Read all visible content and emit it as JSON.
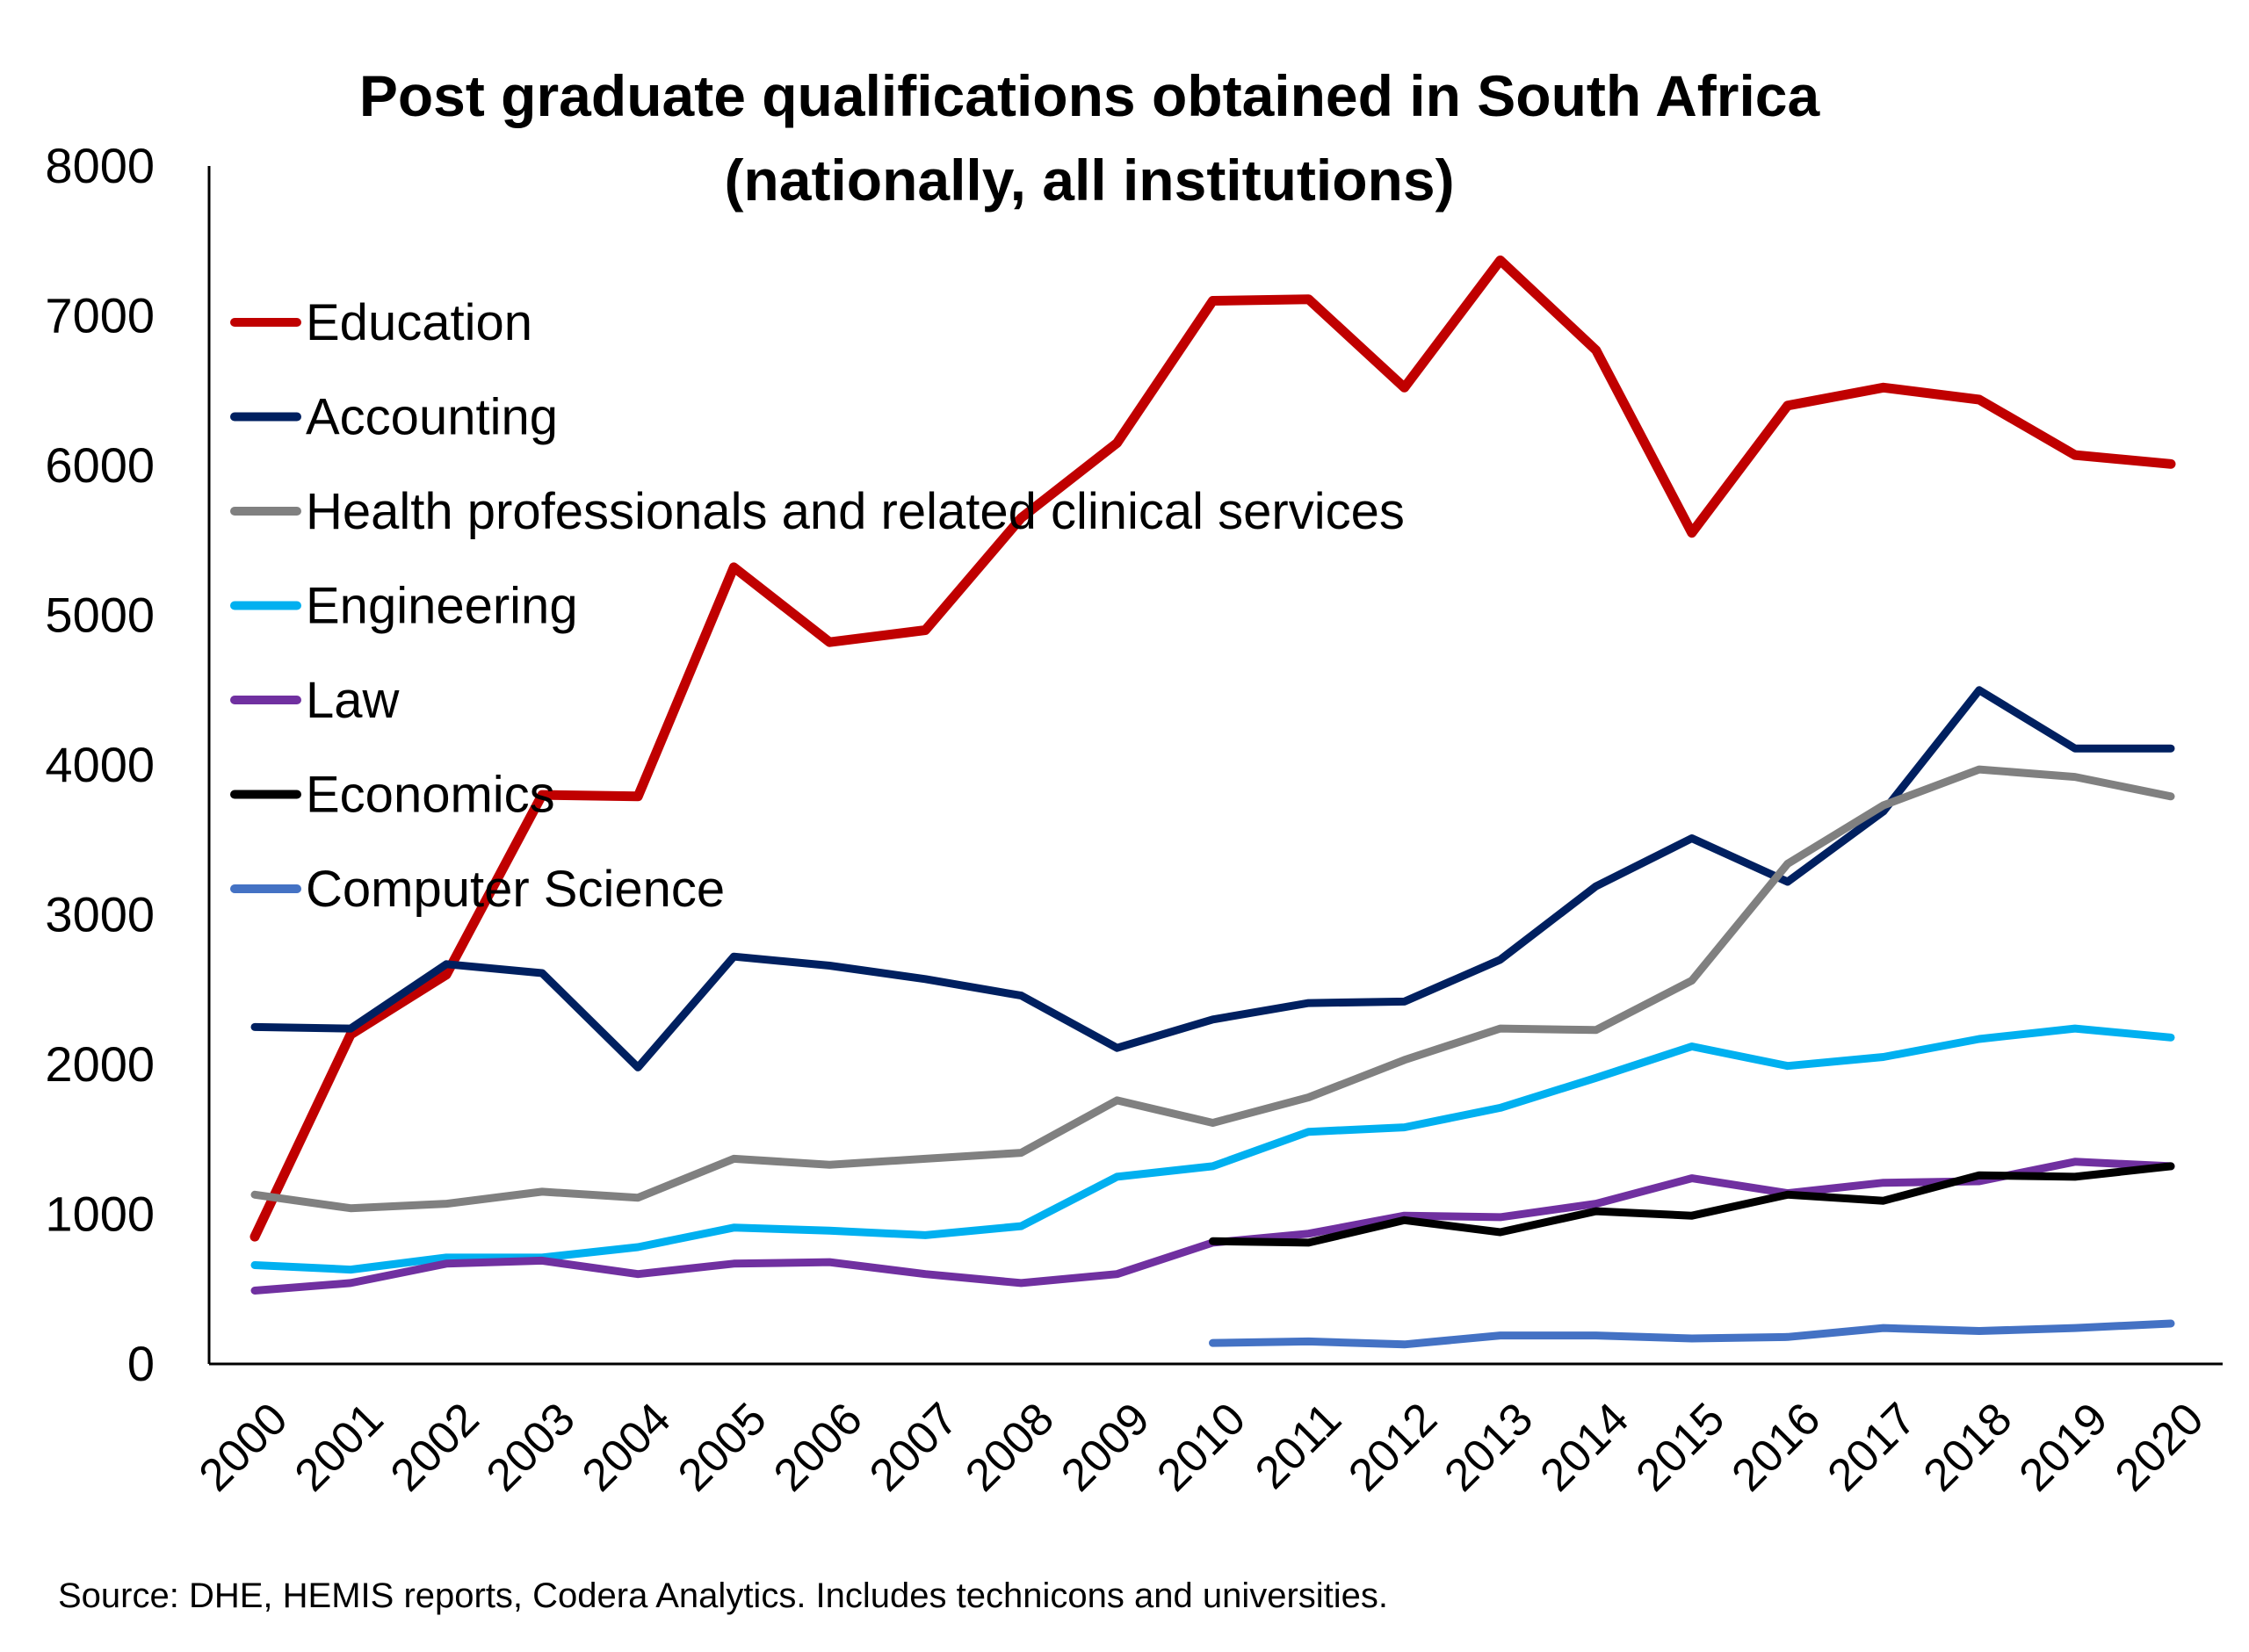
{
  "chart_data": {
    "type": "line",
    "title": "Post graduate qualifications obtained in South Africa",
    "subtitle": "(nationally, all institutions)",
    "xlabel": "",
    "ylabel": "",
    "ylim": [
      0,
      8000
    ],
    "yticks": [
      "0",
      "1000",
      "2000",
      "3000",
      "4000",
      "5000",
      "6000",
      "7000",
      "8000"
    ],
    "x": [
      "2000",
      "2001",
      "2002",
      "2003",
      "2004",
      "2005",
      "2006",
      "2007",
      "2008",
      "2009",
      "2010",
      "2011",
      "2012",
      "2013",
      "2014",
      "2015",
      "2016",
      "2017",
      "2018",
      "2019",
      "2020"
    ],
    "grid": false,
    "legend_position": "top-left",
    "series": [
      {
        "name": "Education",
        "color": "#c00000",
        "values": [
          850,
          2200,
          2600,
          3800,
          3790,
          5320,
          4820,
          4900,
          5650,
          6150,
          7100,
          7110,
          6520,
          7370,
          6770,
          5550,
          6400,
          6520,
          6440,
          6070,
          6010
        ]
      },
      {
        "name": "Accounting",
        "color": "#002060",
        "values": [
          2250,
          2240,
          2670,
          2610,
          1980,
          2720,
          2660,
          2570,
          2460,
          2110,
          2300,
          2410,
          2420,
          2700,
          3190,
          3510,
          3220,
          3690,
          4500,
          4110,
          4110
        ]
      },
      {
        "name": "Health professionals and related clinical services",
        "color": "#808080",
        "values": [
          1130,
          1040,
          1070,
          1150,
          1110,
          1370,
          1330,
          1370,
          1410,
          1760,
          1610,
          1780,
          2030,
          2240,
          2230,
          2560,
          3340,
          3730,
          3970,
          3920,
          3790
        ]
      },
      {
        "name": "Engineering",
        "color": "#00b0f0",
        "values": [
          660,
          630,
          710,
          710,
          780,
          910,
          890,
          860,
          920,
          1250,
          1320,
          1550,
          1580,
          1710,
          1910,
          2120,
          1990,
          2050,
          2170,
          2240,
          2180
        ]
      },
      {
        "name": "Law",
        "color": "#7030a0",
        "values": [
          490,
          540,
          670,
          690,
          600,
          670,
          680,
          600,
          540,
          600,
          810,
          870,
          990,
          980,
          1070,
          1240,
          1140,
          1210,
          1220,
          1350,
          1320
        ]
      },
      {
        "name": "Economics",
        "color": "#000000",
        "values": [
          null,
          null,
          null,
          null,
          null,
          null,
          null,
          null,
          null,
          null,
          820,
          810,
          960,
          880,
          1020,
          990,
          1130,
          1090,
          1260,
          1250,
          1320
        ]
      },
      {
        "name": "Computer Science",
        "color": "#4472c4",
        "values": [
          null,
          null,
          null,
          null,
          null,
          null,
          null,
          null,
          null,
          null,
          140,
          150,
          130,
          190,
          190,
          170,
          180,
          240,
          220,
          240,
          270
        ]
      }
    ],
    "source": "Source: DHE, HEMIS reports, Codera Analytics. Includes technicons and universities."
  }
}
